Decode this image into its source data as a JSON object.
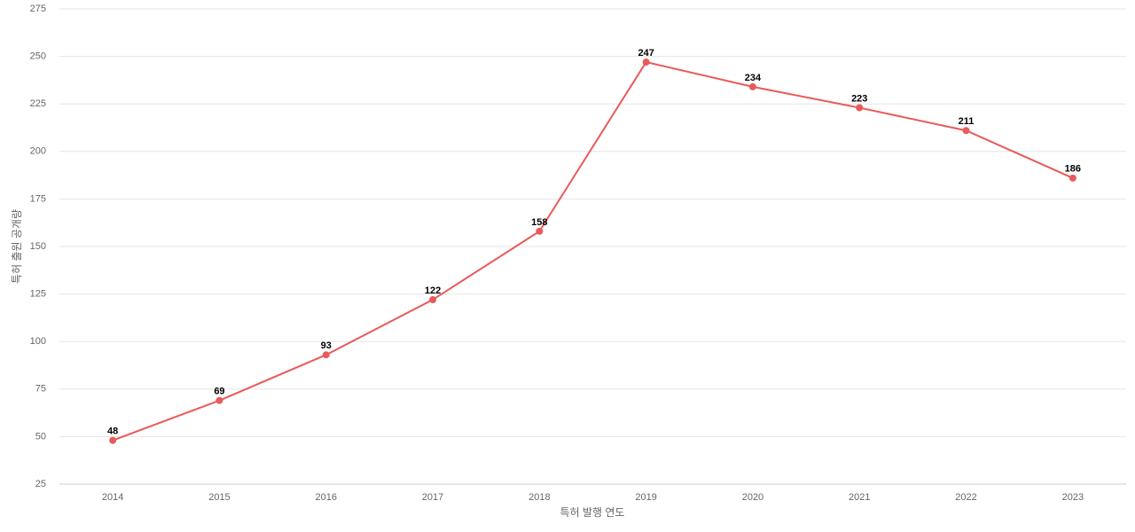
{
  "chart_data": {
    "type": "line",
    "x_label": "특허 발행 연도",
    "y_label": "특허 출원 공개량",
    "categories": [
      "2014",
      "2015",
      "2016",
      "2017",
      "2018",
      "2019",
      "2020",
      "2021",
      "2022",
      "2023"
    ],
    "series": [
      {
        "color": "#e95a5a",
        "values": [
          48,
          69,
          93,
          122,
          158,
          247,
          234,
          223,
          211,
          186
        ]
      }
    ],
    "ylim": [
      25,
      275
    ],
    "yticks": [
      25,
      50,
      75,
      100,
      125,
      150,
      175,
      200,
      225,
      250,
      275
    ],
    "grid": true
  }
}
